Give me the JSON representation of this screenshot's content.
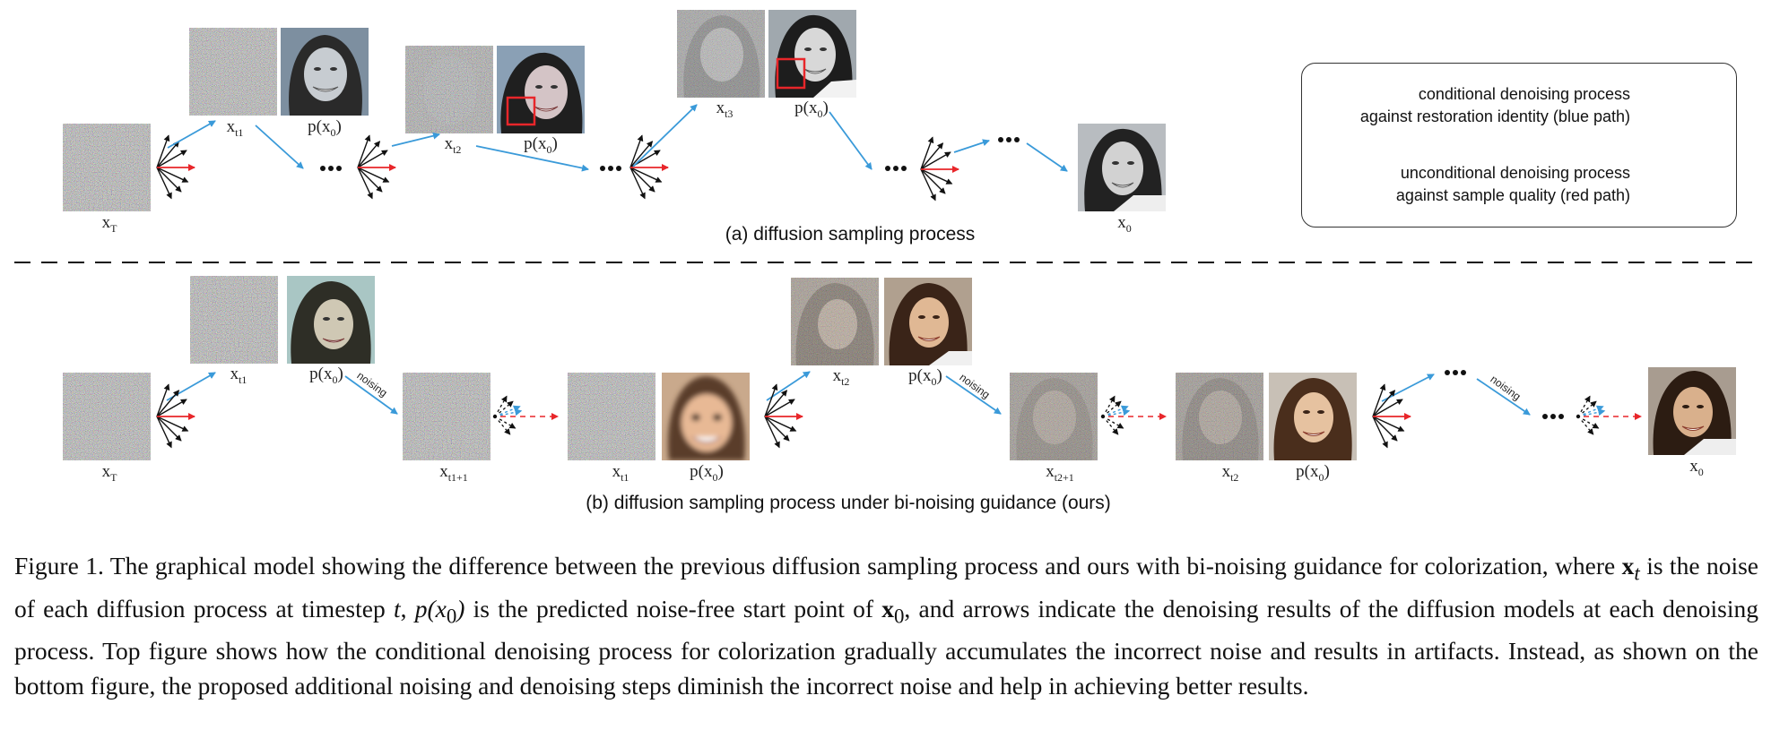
{
  "legend": {
    "conditional_line1": "conditional denoising process",
    "conditional_line2": "against restoration identity (blue path)",
    "unconditional_line1": "unconditional denoising process",
    "unconditional_line2": "against sample quality (red path)"
  },
  "top": {
    "caption": "(a) diffusion sampling process",
    "labels": {
      "xT": "x",
      "xT_sub": "T",
      "xt1": "x",
      "xt1_sub": "t1",
      "xt2": "x",
      "xt2_sub": "t2",
      "xt3": "x",
      "xt3_sub": "t3",
      "px0": "p(x",
      "px0_sub": "0",
      "px0_close": ")",
      "x0": "x",
      "x0_sub": "0",
      "dots": "•••"
    }
  },
  "bottom": {
    "caption": "(b) diffusion sampling process under bi-noising guidance (ours)",
    "noising": "noising",
    "labels": {
      "xT": "x",
      "xT_sub": "T",
      "xt1": "x",
      "xt1_sub": "t1",
      "xt1p1": "x",
      "xt1p1_sub": "t1+1",
      "xt2": "x",
      "xt2_sub": "t2",
      "xt2p1": "x",
      "xt2p1_sub": "t2+1",
      "px0": "p(x",
      "px0_sub": "0",
      "px0_close": ")",
      "x0": "x",
      "x0_sub": "0",
      "dots": "•••"
    }
  },
  "figure_caption": {
    "label": "Figure 1.",
    "part1": "The graphical model showing the difference between the previous diffusion sampling process and ours with bi-noising guidance for colorization, where",
    "xt": "x",
    "xt_sub": "t",
    "part2": "is the noise of each diffusion process at timestep",
    "t": "t",
    "part3": ",",
    "px0": "p(x",
    "px0_sub": "0",
    "px0_close": ")",
    "part4": "is the predicted noise-free start point of",
    "x0": "x",
    "x0_sub": "0",
    "part5": ", and arrows indicate the denoising results of the diffusion models at each denoising process. Top figure shows how the conditional denoising process for colorization gradually accumulates the incorrect noise and results in artifacts.  Instead, as shown on the bottom figure, the proposed additional noising and denoising steps diminish the incorrect noise and help in achieving better results."
  },
  "colors": {
    "blue": "#3a9ad9",
    "red": "#e8262a",
    "noise": "#8a8a8a"
  }
}
